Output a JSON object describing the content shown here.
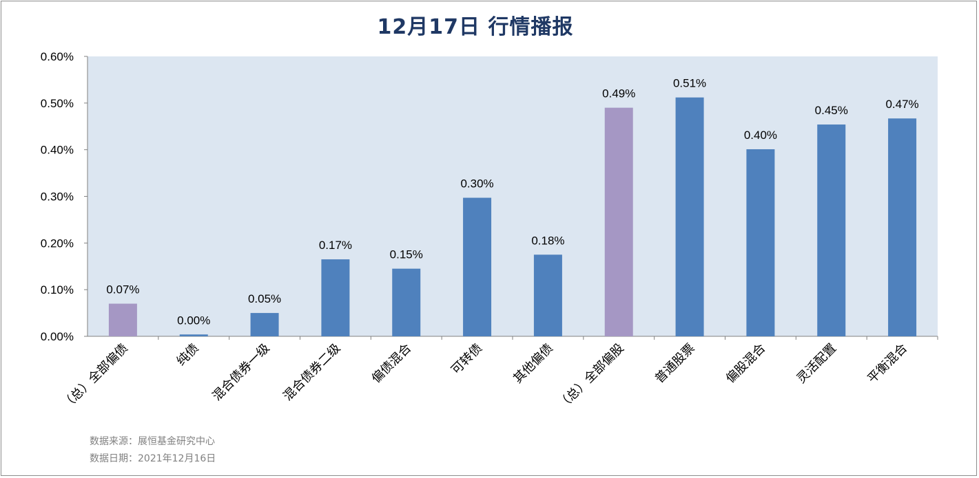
{
  "title": "12月17日  行情播报",
  "footer": {
    "source": "数据来源：展恒基金研究中心",
    "date": "数据日期：2021年12月16日"
  },
  "colors": {
    "plot_background": "#dce6f1",
    "bar_blue": "#4f81bd",
    "bar_purple": "#a597c4",
    "title": "#1f3864"
  },
  "chart_data": {
    "type": "bar",
    "title": "12月17日  行情播报",
    "xlabel": "",
    "ylabel": "",
    "ylim": [
      0,
      0.6
    ],
    "y_ticks": [
      "0.00%",
      "0.10%",
      "0.20%",
      "0.30%",
      "0.40%",
      "0.50%",
      "0.60%"
    ],
    "y_tick_values": [
      0,
      0.1,
      0.2,
      0.3,
      0.4,
      0.5,
      0.6
    ],
    "categories": [
      "（总）全部偏债",
      "纯债",
      "混合债券一级",
      "混合债券二级",
      "偏债混合",
      "可转债",
      "其他偏债",
      "（总）全部偏股",
      "普通股票",
      "偏股混合",
      "灵活配置",
      "平衡混合"
    ],
    "values": [
      0.07,
      0.004,
      0.05,
      0.165,
      0.145,
      0.297,
      0.175,
      0.49,
      0.512,
      0.401,
      0.454,
      0.467
    ],
    "value_labels": [
      "0.07%",
      "0.00%",
      "0.05%",
      "0.17%",
      "0.15%",
      "0.30%",
      "0.18%",
      "0.49%",
      "0.51%",
      "0.40%",
      "0.45%",
      "0.47%"
    ],
    "bar_colors": [
      "#a597c4",
      "#4f81bd",
      "#4f81bd",
      "#4f81bd",
      "#4f81bd",
      "#4f81bd",
      "#4f81bd",
      "#a597c4",
      "#4f81bd",
      "#4f81bd",
      "#4f81bd",
      "#4f81bd"
    ],
    "grid": false,
    "legend": "none"
  }
}
